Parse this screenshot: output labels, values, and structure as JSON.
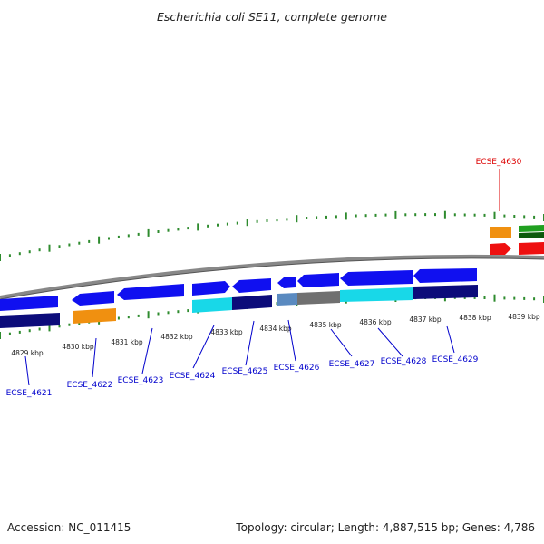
{
  "title": "Escherichia coli SE11, complete genome",
  "footer": {
    "accession": "Accession: NC_011415",
    "summary": "Topology: circular; Length: 4,887,515 bp; Genes: 4,786"
  },
  "colors": {
    "background": "#ffffff",
    "backbone": "#888888",
    "tick": "#2e8b2e",
    "label_blue": "#0000cc",
    "label_red": "#dd0000",
    "blue": "#1010f0",
    "navy": "#0c0c7a",
    "orange": "#f09010",
    "cyan": "#18d8e8",
    "steel": "#5a8ac0",
    "gray": "#707070",
    "green": "#20a020",
    "red": "#ee1010"
  },
  "scale_labels": [
    "4829 kbp",
    "4830 kbp",
    "4831 kbp",
    "4832 kbp",
    "4833 kbp",
    "4834 kbp",
    "4835 kbp",
    "4836 kbp",
    "4837 kbp",
    "4838 kbp",
    "4839 kbp"
  ],
  "gene_labels": [
    {
      "id": "ECSE_4621",
      "color": "label_blue"
    },
    {
      "id": "ECSE_4622",
      "color": "label_blue"
    },
    {
      "id": "ECSE_4623",
      "color": "label_blue"
    },
    {
      "id": "ECSE_4624",
      "color": "label_blue"
    },
    {
      "id": "ECSE_4625",
      "color": "label_blue"
    },
    {
      "id": "ECSE_4626",
      "color": "label_blue"
    },
    {
      "id": "ECSE_4627",
      "color": "label_blue"
    },
    {
      "id": "ECSE_4628",
      "color": "label_blue"
    },
    {
      "id": "ECSE_4629",
      "color": "label_blue"
    },
    {
      "id": "ECSE_4630",
      "color": "label_red"
    }
  ]
}
